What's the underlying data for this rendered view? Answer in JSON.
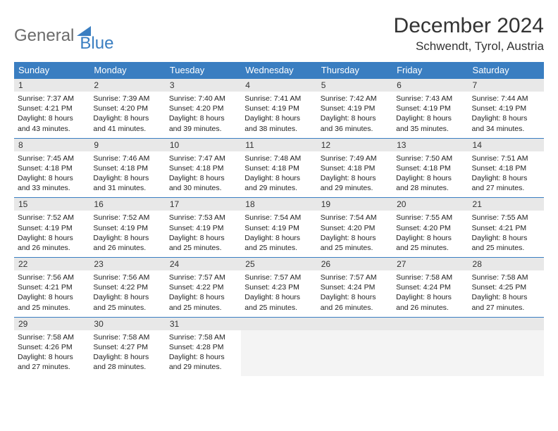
{
  "logo": {
    "text1": "General",
    "text2": "Blue"
  },
  "title": "December 2024",
  "location": "Schwendt, Tyrol, Austria",
  "header_bg": "#3a7ec1",
  "header_fg": "#ffffff",
  "daynum_bg": "#e8e8e8",
  "border_color": "#3a7ec1",
  "columns": [
    "Sunday",
    "Monday",
    "Tuesday",
    "Wednesday",
    "Thursday",
    "Friday",
    "Saturday"
  ],
  "weeks": [
    [
      {
        "n": "1",
        "sunrise": "7:37 AM",
        "sunset": "4:21 PM",
        "daylight": "8 hours and 43 minutes."
      },
      {
        "n": "2",
        "sunrise": "7:39 AM",
        "sunset": "4:20 PM",
        "daylight": "8 hours and 41 minutes."
      },
      {
        "n": "3",
        "sunrise": "7:40 AM",
        "sunset": "4:20 PM",
        "daylight": "8 hours and 39 minutes."
      },
      {
        "n": "4",
        "sunrise": "7:41 AM",
        "sunset": "4:19 PM",
        "daylight": "8 hours and 38 minutes."
      },
      {
        "n": "5",
        "sunrise": "7:42 AM",
        "sunset": "4:19 PM",
        "daylight": "8 hours and 36 minutes."
      },
      {
        "n": "6",
        "sunrise": "7:43 AM",
        "sunset": "4:19 PM",
        "daylight": "8 hours and 35 minutes."
      },
      {
        "n": "7",
        "sunrise": "7:44 AM",
        "sunset": "4:19 PM",
        "daylight": "8 hours and 34 minutes."
      }
    ],
    [
      {
        "n": "8",
        "sunrise": "7:45 AM",
        "sunset": "4:18 PM",
        "daylight": "8 hours and 33 minutes."
      },
      {
        "n": "9",
        "sunrise": "7:46 AM",
        "sunset": "4:18 PM",
        "daylight": "8 hours and 31 minutes."
      },
      {
        "n": "10",
        "sunrise": "7:47 AM",
        "sunset": "4:18 PM",
        "daylight": "8 hours and 30 minutes."
      },
      {
        "n": "11",
        "sunrise": "7:48 AM",
        "sunset": "4:18 PM",
        "daylight": "8 hours and 29 minutes."
      },
      {
        "n": "12",
        "sunrise": "7:49 AM",
        "sunset": "4:18 PM",
        "daylight": "8 hours and 29 minutes."
      },
      {
        "n": "13",
        "sunrise": "7:50 AM",
        "sunset": "4:18 PM",
        "daylight": "8 hours and 28 minutes."
      },
      {
        "n": "14",
        "sunrise": "7:51 AM",
        "sunset": "4:18 PM",
        "daylight": "8 hours and 27 minutes."
      }
    ],
    [
      {
        "n": "15",
        "sunrise": "7:52 AM",
        "sunset": "4:19 PM",
        "daylight": "8 hours and 26 minutes."
      },
      {
        "n": "16",
        "sunrise": "7:52 AM",
        "sunset": "4:19 PM",
        "daylight": "8 hours and 26 minutes."
      },
      {
        "n": "17",
        "sunrise": "7:53 AM",
        "sunset": "4:19 PM",
        "daylight": "8 hours and 25 minutes."
      },
      {
        "n": "18",
        "sunrise": "7:54 AM",
        "sunset": "4:19 PM",
        "daylight": "8 hours and 25 minutes."
      },
      {
        "n": "19",
        "sunrise": "7:54 AM",
        "sunset": "4:20 PM",
        "daylight": "8 hours and 25 minutes."
      },
      {
        "n": "20",
        "sunrise": "7:55 AM",
        "sunset": "4:20 PM",
        "daylight": "8 hours and 25 minutes."
      },
      {
        "n": "21",
        "sunrise": "7:55 AM",
        "sunset": "4:21 PM",
        "daylight": "8 hours and 25 minutes."
      }
    ],
    [
      {
        "n": "22",
        "sunrise": "7:56 AM",
        "sunset": "4:21 PM",
        "daylight": "8 hours and 25 minutes."
      },
      {
        "n": "23",
        "sunrise": "7:56 AM",
        "sunset": "4:22 PM",
        "daylight": "8 hours and 25 minutes."
      },
      {
        "n": "24",
        "sunrise": "7:57 AM",
        "sunset": "4:22 PM",
        "daylight": "8 hours and 25 minutes."
      },
      {
        "n": "25",
        "sunrise": "7:57 AM",
        "sunset": "4:23 PM",
        "daylight": "8 hours and 25 minutes."
      },
      {
        "n": "26",
        "sunrise": "7:57 AM",
        "sunset": "4:24 PM",
        "daylight": "8 hours and 26 minutes."
      },
      {
        "n": "27",
        "sunrise": "7:58 AM",
        "sunset": "4:24 PM",
        "daylight": "8 hours and 26 minutes."
      },
      {
        "n": "28",
        "sunrise": "7:58 AM",
        "sunset": "4:25 PM",
        "daylight": "8 hours and 27 minutes."
      }
    ],
    [
      {
        "n": "29",
        "sunrise": "7:58 AM",
        "sunset": "4:26 PM",
        "daylight": "8 hours and 27 minutes."
      },
      {
        "n": "30",
        "sunrise": "7:58 AM",
        "sunset": "4:27 PM",
        "daylight": "8 hours and 28 minutes."
      },
      {
        "n": "31",
        "sunrise": "7:58 AM",
        "sunset": "4:28 PM",
        "daylight": "8 hours and 29 minutes."
      },
      null,
      null,
      null,
      null
    ]
  ],
  "labels": {
    "sunrise_prefix": "Sunrise: ",
    "sunset_prefix": "Sunset: ",
    "daylight_prefix": "Daylight: "
  }
}
